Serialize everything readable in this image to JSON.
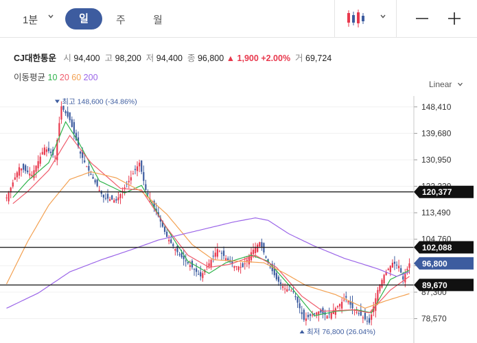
{
  "toolbar": {
    "period_select": "1분",
    "tabs": [
      "일",
      "주",
      "월"
    ],
    "active_tab": "일",
    "chart_type_icon": "candlestick-icon"
  },
  "stock": {
    "name": "CJ대한통운",
    "open_label": "시",
    "open": "94,400",
    "high_label": "고",
    "high": "98,200",
    "low_label": "저",
    "low": "94,400",
    "close_label": "종",
    "close": "96,800",
    "change": "1,900",
    "change_pct": "+2.00%",
    "volume_label": "거",
    "volume": "69,724"
  },
  "moving_average": {
    "label": "이동평균",
    "periods": [
      {
        "value": "10",
        "color": "#2db34a"
      },
      {
        "value": "20",
        "color": "#ef5a6a"
      },
      {
        "value": "60",
        "color": "#f3a050"
      },
      {
        "value": "200",
        "color": "#9a64e8"
      }
    ]
  },
  "scale_label": "Linear",
  "colors": {
    "up": "#e8384d",
    "down": "#3d5c9f",
    "accent": "#3d5c9f"
  },
  "chart_data": {
    "type": "line",
    "y_ticks": [
      "148,410",
      "139,680",
      "130,950",
      "122,220",
      "113,490",
      "104,760",
      "96,030",
      "87,300",
      "78,570"
    ],
    "ylim": [
      74000,
      153000
    ],
    "price_tags": [
      {
        "value": 120377,
        "label": "120,377",
        "style": "black"
      },
      {
        "value": 102088,
        "label": "102,088",
        "style": "black"
      },
      {
        "value": 96800,
        "label": "96,800",
        "style": "current"
      },
      {
        "value": 89670,
        "label": "89,670",
        "style": "black"
      }
    ],
    "annotations": {
      "max": {
        "label": "최고",
        "text": "148,600 (-34.86%)"
      },
      "min": {
        "label": "최저",
        "text": "76,800 (26.04%)"
      }
    },
    "anchors": [
      [
        0,
        118500
      ],
      [
        6,
        128500
      ],
      [
        12,
        126000
      ],
      [
        18,
        135000
      ],
      [
        23,
        132000
      ],
      [
        26,
        148600
      ],
      [
        30,
        144000
      ],
      [
        35,
        133000
      ],
      [
        40,
        126000
      ],
      [
        46,
        118500
      ],
      [
        52,
        117500
      ],
      [
        58,
        124000
      ],
      [
        63,
        130000
      ],
      [
        66,
        121000
      ],
      [
        71,
        114000
      ],
      [
        76,
        105500
      ],
      [
        82,
        99500
      ],
      [
        88,
        95500
      ],
      [
        92,
        92500
      ],
      [
        96,
        96800
      ],
      [
        100,
        101500
      ],
      [
        104,
        98500
      ],
      [
        108,
        96000
      ],
      [
        112,
        95500
      ],
      [
        116,
        100500
      ],
      [
        120,
        103800
      ],
      [
        124,
        97000
      ],
      [
        128,
        91500
      ],
      [
        132,
        88500
      ],
      [
        136,
        87500
      ],
      [
        139,
        82000
      ],
      [
        141,
        78200
      ],
      [
        144,
        79500
      ],
      [
        148,
        81000
      ],
      [
        152,
        79500
      ],
      [
        156,
        82000
      ],
      [
        161,
        85500
      ],
      [
        164,
        82000
      ],
      [
        168,
        79500
      ],
      [
        172,
        77200
      ],
      [
        176,
        88000
      ],
      [
        179,
        93000
      ],
      [
        183,
        97000
      ],
      [
        186,
        96000
      ],
      [
        188,
        91500
      ],
      [
        191,
        96800
      ]
    ],
    "ma_series": [
      {
        "period": 10,
        "color": "#2db34a",
        "anchors": [
          [
            3,
            118500
          ],
          [
            10,
            124000
          ],
          [
            20,
            130000
          ],
          [
            28,
            143500
          ],
          [
            34,
            137000
          ],
          [
            44,
            124000
          ],
          [
            56,
            120000
          ],
          [
            64,
            122500
          ],
          [
            74,
            110500
          ],
          [
            86,
            97500
          ],
          [
            96,
            93500
          ],
          [
            104,
            97000
          ],
          [
            116,
            99500
          ],
          [
            124,
            97500
          ],
          [
            136,
            88000
          ],
          [
            146,
            79500
          ],
          [
            156,
            81000
          ],
          [
            166,
            81500
          ],
          [
            173,
            80500
          ],
          [
            182,
            91500
          ],
          [
            191,
            94500
          ]
        ]
      },
      {
        "period": 20,
        "color": "#ef5a6a",
        "anchors": [
          [
            3,
            116500
          ],
          [
            10,
            120500
          ],
          [
            20,
            127500
          ],
          [
            30,
            139000
          ],
          [
            40,
            130000
          ],
          [
            54,
            121500
          ],
          [
            64,
            121000
          ],
          [
            76,
            108500
          ],
          [
            86,
            99500
          ],
          [
            96,
            95500
          ],
          [
            106,
            96500
          ],
          [
            118,
            99500
          ],
          [
            128,
            95500
          ],
          [
            140,
            86000
          ],
          [
            150,
            81000
          ],
          [
            164,
            81500
          ],
          [
            172,
            80500
          ],
          [
            182,
            88000
          ],
          [
            191,
            92500
          ]
        ]
      },
      {
        "period": 60,
        "color": "#f3a050",
        "anchors": [
          [
            0,
            90000
          ],
          [
            10,
            104000
          ],
          [
            20,
            116000
          ],
          [
            30,
            124500
          ],
          [
            40,
            127000
          ],
          [
            52,
            125000
          ],
          [
            64,
            120500
          ],
          [
            76,
            113000
          ],
          [
            88,
            103000
          ],
          [
            98,
            98000
          ],
          [
            110,
            97500
          ],
          [
            122,
            97000
          ],
          [
            132,
            93500
          ],
          [
            142,
            89500
          ],
          [
            156,
            86500
          ],
          [
            170,
            82000
          ],
          [
            180,
            84500
          ],
          [
            191,
            86800
          ]
        ]
      },
      {
        "period": 200,
        "color": "#9a64e8",
        "anchors": [
          [
            0,
            82000
          ],
          [
            15,
            87000
          ],
          [
            30,
            94000
          ],
          [
            45,
            98000
          ],
          [
            60,
            101500
          ],
          [
            72,
            104500
          ],
          [
            84,
            106500
          ],
          [
            96,
            108500
          ],
          [
            108,
            110500
          ],
          [
            118,
            111800
          ],
          [
            124,
            111000
          ],
          [
            134,
            106500
          ],
          [
            146,
            102500
          ],
          [
            160,
            98500
          ],
          [
            176,
            95000
          ],
          [
            185,
            92500
          ],
          [
            191,
            94000
          ]
        ]
      }
    ]
  }
}
